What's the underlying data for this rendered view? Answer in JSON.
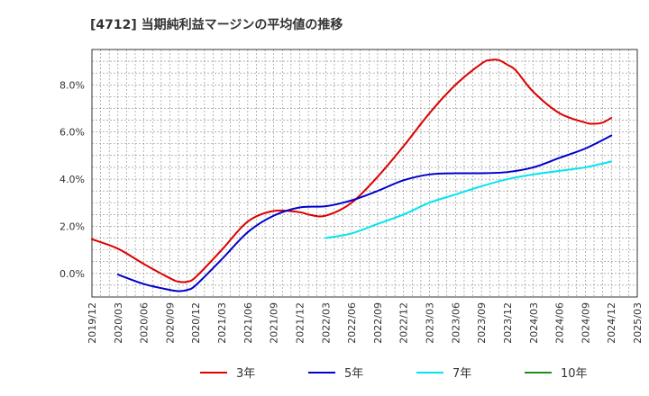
{
  "chart_data": {
    "type": "line",
    "title": "[4712]  当期純利益マージンの平均値の推移",
    "xlabel": "",
    "ylabel": "",
    "x_ticks": [
      "2019/12",
      "2020/03",
      "2020/06",
      "2020/09",
      "2020/12",
      "2021/03",
      "2021/06",
      "2021/09",
      "2021/12",
      "2022/03",
      "2022/06",
      "2022/09",
      "2022/12",
      "2023/03",
      "2023/06",
      "2023/09",
      "2023/12",
      "2024/03",
      "2024/06",
      "2024/09",
      "2024/12",
      "2025/03"
    ],
    "y_ticks": [
      0,
      2,
      4,
      6,
      8
    ],
    "y_tick_labels": [
      "0.0%",
      "2.0%",
      "4.0%",
      "6.0%",
      "8.0%"
    ],
    "ylim": [
      -1.0,
      9.5
    ],
    "grid": true,
    "legend_position": "bottom",
    "series": [
      {
        "name": "3年",
        "color": "#dd0000",
        "x": [
          "2019/12",
          "2020/03",
          "2020/06",
          "2020/09",
          "2020/10",
          "2020/11",
          "2020/12",
          "2021/03",
          "2021/06",
          "2021/09",
          "2021/12",
          "2022/01",
          "2022/03",
          "2022/06",
          "2022/09",
          "2022/12",
          "2023/03",
          "2023/06",
          "2023/09",
          "2023/10",
          "2023/11",
          "2023/12",
          "2024/01",
          "2024/03",
          "2024/06",
          "2024/09",
          "2024/10",
          "2024/11",
          "2024/12"
        ],
        "values": [
          1.45,
          1.05,
          0.4,
          -0.2,
          -0.35,
          -0.35,
          -0.15,
          1.0,
          2.2,
          2.65,
          2.6,
          2.5,
          2.45,
          3.0,
          4.1,
          5.4,
          6.8,
          8.0,
          8.9,
          9.05,
          9.05,
          8.85,
          8.6,
          7.7,
          6.8,
          6.4,
          6.35,
          6.4,
          6.6
        ]
      },
      {
        "name": "5年",
        "color": "#0000cc",
        "x": [
          "2020/03",
          "2020/06",
          "2020/09",
          "2020/10",
          "2020/11",
          "2020/12",
          "2021/03",
          "2021/06",
          "2021/09",
          "2021/12",
          "2022/03",
          "2022/06",
          "2022/09",
          "2022/12",
          "2023/03",
          "2023/06",
          "2023/09",
          "2023/12",
          "2024/03",
          "2024/06",
          "2024/09",
          "2024/12"
        ],
        "values": [
          -0.05,
          -0.45,
          -0.7,
          -0.75,
          -0.7,
          -0.5,
          0.6,
          1.75,
          2.45,
          2.8,
          2.85,
          3.1,
          3.5,
          3.95,
          4.2,
          4.25,
          4.25,
          4.3,
          4.5,
          4.9,
          5.3,
          5.85
        ]
      },
      {
        "name": "7年",
        "color": "#00e5ee",
        "x": [
          "2022/03",
          "2022/06",
          "2022/09",
          "2022/12",
          "2023/03",
          "2023/06",
          "2023/09",
          "2023/12",
          "2024/03",
          "2024/06",
          "2024/09",
          "2024/12"
        ],
        "values": [
          1.5,
          1.7,
          2.1,
          2.5,
          3.0,
          3.35,
          3.7,
          4.0,
          4.2,
          4.35,
          4.5,
          4.75
        ]
      },
      {
        "name": "10年",
        "color": "#228b22",
        "x": [],
        "values": []
      }
    ]
  }
}
